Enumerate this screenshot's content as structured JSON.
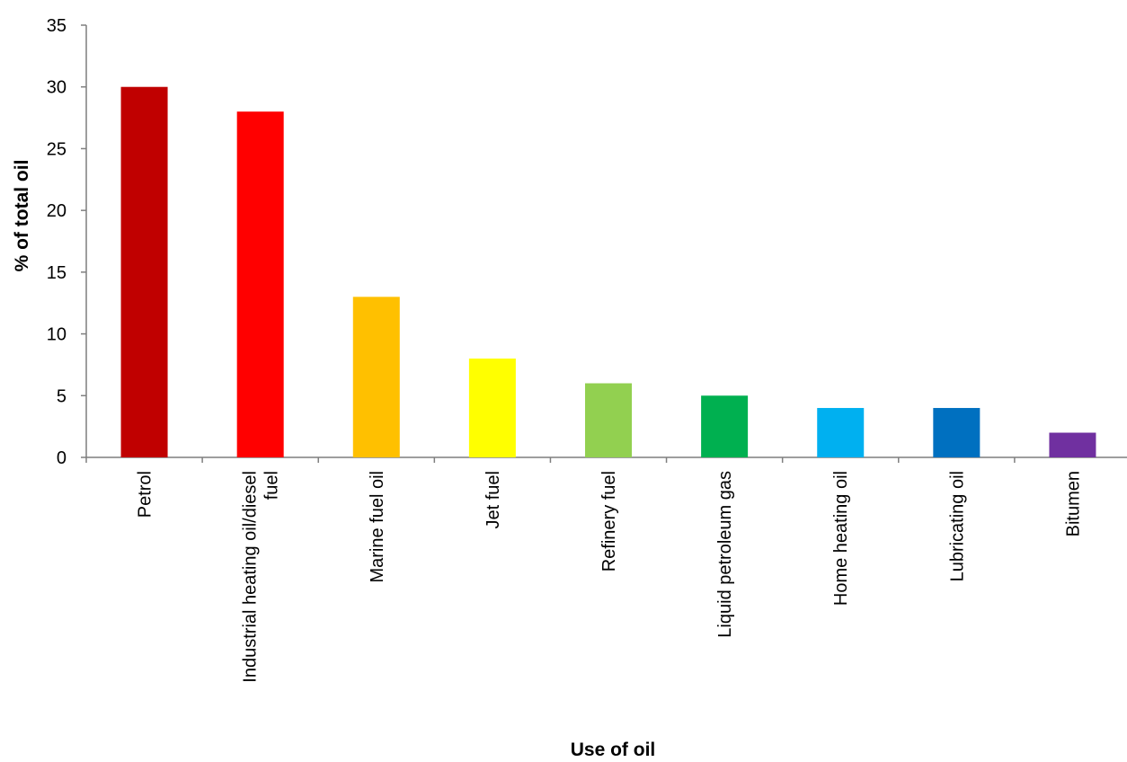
{
  "chart_data": {
    "type": "bar",
    "title": "",
    "xlabel": "Use of oil",
    "ylabel": "% of total oil",
    "ylim": [
      0,
      35
    ],
    "yticks": [
      0,
      5,
      10,
      15,
      20,
      25,
      30,
      35
    ],
    "grid": false,
    "legend": "none",
    "categories": [
      "Petrol",
      "Industrial heating oil/diesel fuel",
      "Marine fuel oil",
      "Jet fuel",
      "Refinery fuel",
      "Liquid petroleum gas",
      "Home heating oil",
      "Lubricating oil",
      "Bitumen"
    ],
    "category_lines": [
      [
        "Petrol"
      ],
      [
        "Industrial heating oil/diesel",
        "fuel"
      ],
      [
        "Marine fuel oil"
      ],
      [
        "Jet fuel"
      ],
      [
        "Refinery fuel"
      ],
      [
        "Liquid petroleum gas"
      ],
      [
        "Home heating oil"
      ],
      [
        "Lubricating oil"
      ],
      [
        "Bitumen"
      ]
    ],
    "values": [
      30,
      28,
      13,
      8,
      6,
      5,
      4,
      4,
      2
    ],
    "colors": [
      "#c00000",
      "#ff0000",
      "#ffc000",
      "#ffff00",
      "#92d050",
      "#00b050",
      "#00b0f0",
      "#0070c0",
      "#7030a0"
    ]
  }
}
